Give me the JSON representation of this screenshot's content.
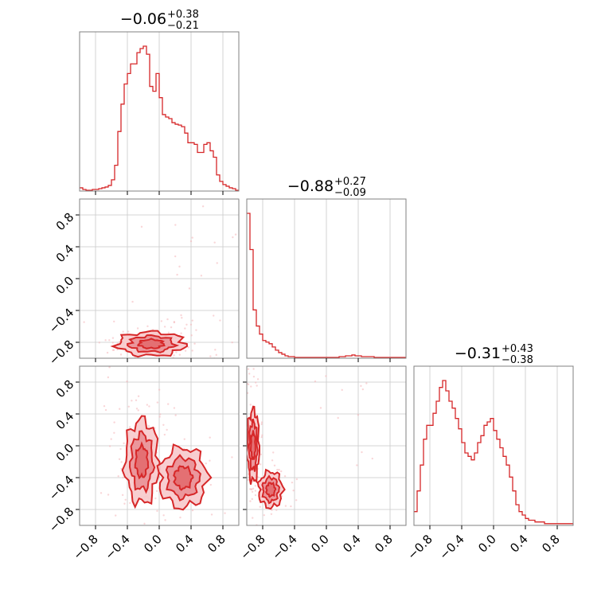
{
  "colors": {
    "line": "#d62728",
    "fill_inner": "#e78a8f",
    "fill_outer": "#f7c9cb",
    "scatter": "#f4b5b8",
    "grid": "#c8c8c8",
    "frame": "#808080"
  },
  "chart_data": [
    {
      "type": "histogram",
      "panel": "marginal-p0",
      "title": {
        "median": "−0.06",
        "plus": "+0.38",
        "minus": "−0.21"
      },
      "xlim": [
        -1,
        1
      ],
      "bin_edges_start": -1.0,
      "bin_width": 0.04,
      "counts": [
        4,
        2,
        1,
        1,
        2,
        2,
        3,
        4,
        5,
        7,
        14,
        32,
        74,
        108,
        133,
        146,
        158,
        158,
        172,
        177,
        180,
        170,
        130,
        124,
        146,
        116,
        95,
        92,
        90,
        85,
        83,
        82,
        80,
        72,
        60,
        60,
        58,
        48,
        48,
        58,
        60,
        50,
        42,
        20,
        12,
        8,
        6,
        4,
        3,
        1
      ]
    },
    {
      "type": "scatter+contour",
      "panel": "2d-p0-p1",
      "xlim": [
        -1,
        1
      ],
      "ylim": [
        -1,
        1
      ],
      "density_clusters": [
        {
          "center": [
            -0.1,
            -0.82
          ],
          "spread": [
            0.28,
            0.1
          ],
          "weight": 0.9
        },
        {
          "center": [
            0.5,
            0.5
          ],
          "spread": [
            0.2,
            0.25
          ],
          "weight": 0.1
        }
      ]
    },
    {
      "type": "histogram",
      "panel": "marginal-p1",
      "title": {
        "median": "−0.88",
        "plus": "+0.27",
        "minus": "−0.09"
      },
      "xlim": [
        -1,
        1
      ],
      "bin_edges_start": -1.0,
      "bin_width": 0.04,
      "counts": [
        180,
        135,
        60,
        40,
        30,
        22,
        20,
        18,
        14,
        10,
        7,
        5,
        3,
        2,
        2,
        1,
        1,
        1,
        1,
        1,
        1,
        1,
        1,
        1,
        1,
        1,
        1,
        1,
        1,
        2,
        2,
        3,
        3,
        4,
        3,
        3,
        2,
        2,
        2,
        2,
        1,
        1,
        1,
        1,
        1,
        1,
        1,
        1,
        1,
        1
      ]
    },
    {
      "type": "scatter+contour",
      "panel": "2d-p0-p2",
      "xlim": [
        -1,
        1
      ],
      "ylim": [
        -1,
        1
      ],
      "density_clusters": [
        {
          "center": [
            -0.22,
            -0.2
          ],
          "spread": [
            0.14,
            0.35
          ],
          "weight": 0.75
        },
        {
          "center": [
            0.3,
            -0.4
          ],
          "spread": [
            0.2,
            0.25
          ],
          "weight": 0.25
        }
      ]
    },
    {
      "type": "scatter+contour",
      "panel": "2d-p1-p2",
      "xlim": [
        -1,
        1
      ],
      "ylim": [
        -1,
        1
      ],
      "density_clusters": [
        {
          "center": [
            -0.92,
            0.0
          ],
          "spread": [
            0.05,
            0.3
          ],
          "weight": 0.55
        },
        {
          "center": [
            -0.7,
            -0.55
          ],
          "spread": [
            0.1,
            0.15
          ],
          "weight": 0.35
        },
        {
          "center": [
            0.4,
            0.3
          ],
          "spread": [
            0.2,
            0.4
          ],
          "weight": 0.1
        }
      ]
    },
    {
      "type": "histogram",
      "panel": "marginal-p2",
      "title": {
        "median": "−0.31",
        "plus": "+0.43",
        "minus": "−0.38"
      },
      "xlim": [
        -1,
        1
      ],
      "bin_edges_start": -1.0,
      "bin_width": 0.04,
      "counts": [
        8,
        20,
        35,
        50,
        58,
        58,
        65,
        72,
        80,
        84,
        78,
        72,
        68,
        62,
        56,
        48,
        42,
        40,
        38,
        42,
        48,
        52,
        58,
        60,
        62,
        55,
        50,
        45,
        40,
        35,
        28,
        20,
        12,
        8,
        6,
        4,
        3,
        3,
        2,
        2,
        2,
        1,
        1,
        1,
        1,
        1,
        1,
        1,
        1,
        1
      ]
    }
  ],
  "axes": {
    "tick_values": [
      -0.8,
      -0.4,
      0.0,
      0.4,
      0.8
    ],
    "tick_labels": [
      "−0.8",
      "−0.4",
      "0.0",
      "0.4",
      "0.8"
    ]
  }
}
